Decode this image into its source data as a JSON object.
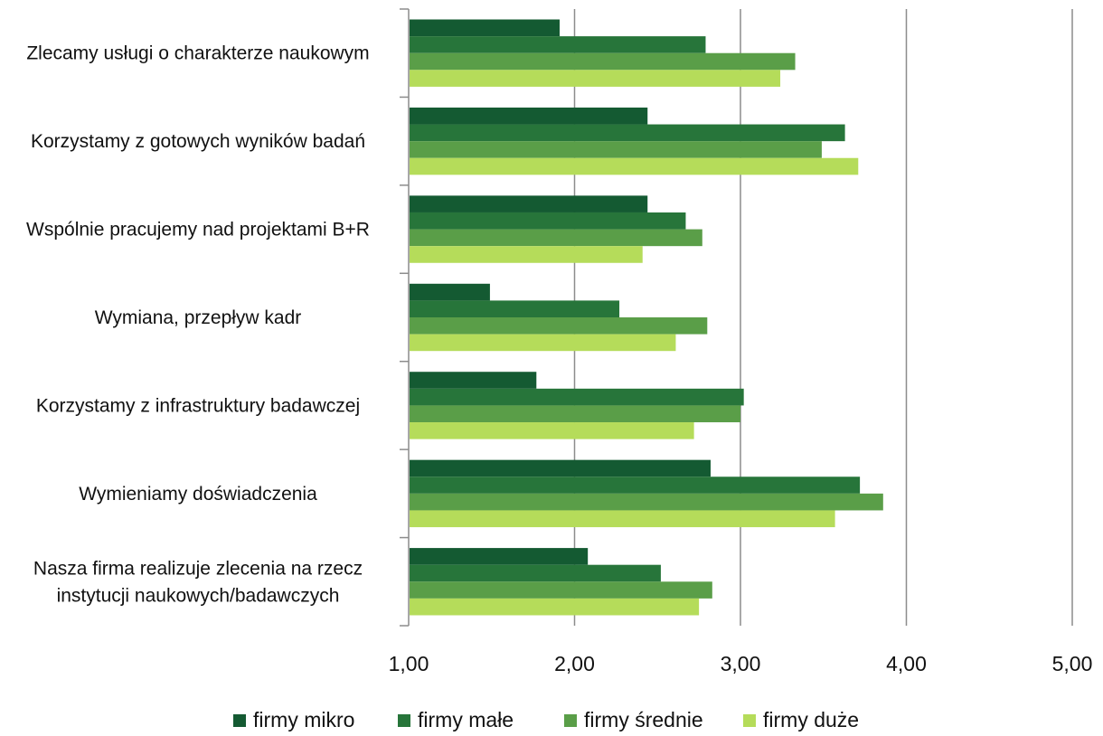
{
  "chart_data": {
    "type": "bar",
    "orientation": "horizontal",
    "title": "",
    "xlabel": "",
    "ylabel": "",
    "xlim": [
      1,
      5
    ],
    "x_ticks": [
      "1,00",
      "2,00",
      "3,00",
      "4,00",
      "5,00"
    ],
    "grid": true,
    "legend_position": "bottom",
    "categories": [
      "Zlecamy usługi o charakterze naukowym",
      "Korzystamy z gotowych wyników badań",
      "Wspólnie pracujemy nad projektami B+R",
      "Wymiana, przepływ kadr",
      "Korzystamy z infrastruktury badawczej",
      "Wymieniamy doświadczenia",
      "Nasza firma realizuje zlecenia na rzecz instytucji naukowych/badawczych"
    ],
    "series": [
      {
        "name": "firmy mikro",
        "color": "#145a32",
        "values": [
          1.91,
          2.44,
          2.44,
          1.49,
          1.77,
          2.82,
          2.08
        ]
      },
      {
        "name": "firmy małe",
        "color": "#27753a",
        "values": [
          2.79,
          3.63,
          2.67,
          2.27,
          3.02,
          3.72,
          2.52
        ]
      },
      {
        "name": "firmy średnie",
        "color": "#5a9e48",
        "values": [
          3.33,
          3.49,
          2.77,
          2.8,
          3.0,
          3.86,
          2.83
        ]
      },
      {
        "name": "firmy duże",
        "color": "#b5dc5a",
        "values": [
          3.24,
          3.71,
          2.41,
          2.61,
          2.72,
          3.57,
          2.75
        ]
      }
    ]
  }
}
